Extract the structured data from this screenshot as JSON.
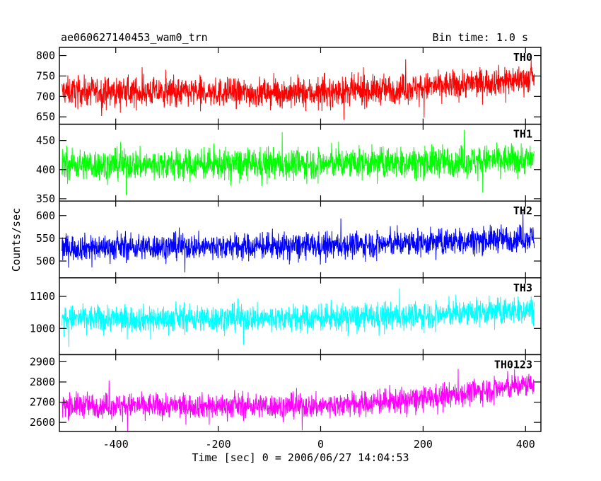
{
  "header": {
    "title": "ae060627140453_wam0_trn",
    "bin_time": "Bin time: 1.0 s"
  },
  "chart_data": {
    "type": "line",
    "title": "ae060627140453_wam0_trn",
    "xlabel": "Time [sec] 0 = 2006/06/27 14:04:53",
    "ylabel": "Counts/sec",
    "xlim": [
      -510,
      430
    ],
    "x_ticks": [
      -400,
      -200,
      0,
      200,
      400
    ],
    "x_range": [
      -505,
      417
    ],
    "panels": [
      {
        "name": "TH0",
        "color": "#ff0000",
        "ylim": [
          632,
          820
        ],
        "y_ticks": [
          650,
          700,
          750,
          800
        ],
        "trend": [
          [
            -505,
            712
          ],
          [
            0,
            708
          ],
          [
            200,
            722
          ],
          [
            417,
            745
          ]
        ],
        "noise": 32
      },
      {
        "name": "TH1",
        "color": "#00ff00",
        "ylim": [
          346,
          478
        ],
        "y_ticks": [
          350,
          400,
          450
        ],
        "trend": [
          [
            -505,
            408
          ],
          [
            0,
            410
          ],
          [
            200,
            413
          ],
          [
            417,
            418
          ]
        ],
        "noise": 24
      },
      {
        "name": "TH2",
        "color": "#0000ff",
        "ylim": [
          463,
          632
        ],
        "y_ticks": [
          500,
          550,
          600
        ],
        "trend": [
          [
            -505,
            530
          ],
          [
            0,
            533
          ],
          [
            200,
            540
          ],
          [
            417,
            552
          ]
        ],
        "noise": 26
      },
      {
        "name": "TH3",
        "color": "#00ffff",
        "ylim": [
          918,
          1158
        ],
        "y_ticks": [
          1000,
          1100
        ],
        "trend": [
          [
            -505,
            1030
          ],
          [
            0,
            1032
          ],
          [
            200,
            1040
          ],
          [
            417,
            1060
          ]
        ],
        "noise": 38
      },
      {
        "name": "TH0123",
        "color": "#ff00ff",
        "ylim": [
          2555,
          2935
        ],
        "y_ticks": [
          2600,
          2700,
          2800,
          2900
        ],
        "trend": [
          [
            -505,
            2685
          ],
          [
            0,
            2680
          ],
          [
            200,
            2715
          ],
          [
            417,
            2790
          ]
        ],
        "noise": 55
      }
    ]
  }
}
